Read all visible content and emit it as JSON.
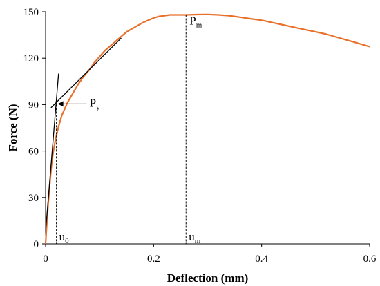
{
  "chart_data": {
    "type": "line",
    "title": "",
    "xlabel": "Deflection (mm)",
    "ylabel": "Force (N)",
    "xlim": [
      0,
      0.6
    ],
    "ylim": [
      0,
      150
    ],
    "x_ticks": [
      0,
      0.2,
      0.4,
      0.6
    ],
    "x_tick_labels": [
      "0",
      "0.2",
      "0.4",
      "0.6"
    ],
    "y_ticks": [
      0,
      30,
      60,
      90,
      120,
      150
    ],
    "y_tick_labels": [
      "0",
      "30",
      "60",
      "90",
      "120",
      "150"
    ],
    "grid": false,
    "legend": "none",
    "series": [
      {
        "color": "#E8702A",
        "x": [
          0.0,
          0.002,
          0.005,
          0.008,
          0.011,
          0.014,
          0.017,
          0.02,
          0.025,
          0.03,
          0.04,
          0.05,
          0.06,
          0.07,
          0.08,
          0.09,
          0.1,
          0.11,
          0.12,
          0.13,
          0.14,
          0.15,
          0.16,
          0.17,
          0.18,
          0.19,
          0.2,
          0.21,
          0.22,
          0.23,
          0.24,
          0.25,
          0.26,
          0.28,
          0.3,
          0.32,
          0.34,
          0.36,
          0.38,
          0.4,
          0.42,
          0.44,
          0.46,
          0.48,
          0.5,
          0.52,
          0.54,
          0.56,
          0.58,
          0.6
        ],
        "y": [
          0,
          12,
          27,
          40,
          51,
          59,
          65,
          70,
          77,
          83,
          91,
          97,
          103,
          108,
          112,
          117,
          121,
          125,
          128,
          131,
          134,
          137,
          139,
          141,
          143,
          144.5,
          146,
          147,
          147.5,
          148,
          148,
          148,
          148,
          148.2,
          148.3,
          148,
          147.5,
          146.5,
          145.5,
          144.5,
          143,
          141.5,
          140,
          138.5,
          137,
          135.5,
          133.5,
          131.5,
          129.5,
          127.5
        ]
      }
    ],
    "annotations": {
      "pm_main": "P",
      "pm_sub": "m",
      "py_main": "P",
      "py_sub": "y",
      "u0_main": "u",
      "u0_sub": "0",
      "um_main": "u",
      "um_sub": "m",
      "pm_force": 148,
      "py_force": 90,
      "u0_deflection": 0.02,
      "um_deflection": 0.26,
      "secant_line": [
        [
          0,
          8
        ],
        [
          0.024,
          110
        ]
      ],
      "tangent_line": [
        [
          0.01,
          88
        ],
        [
          0.14,
          133
        ]
      ]
    }
  }
}
